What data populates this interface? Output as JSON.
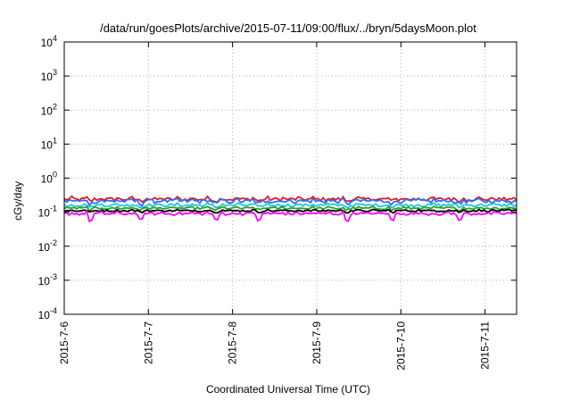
{
  "chart_data": {
    "type": "line",
    "title": "/data/run/goesPlots/archive/2015-07-11/09:00/flux/../bryn/5daysMoon.plot",
    "xlabel": "Coordinated Universal Time (UTC)",
    "ylabel": "cGy/day",
    "x_ticks": [
      "2015-7-6",
      "2015-7-7",
      "2015-7-8",
      "2015-7-9",
      "2015-7-10",
      "2015-7-11"
    ],
    "x_range": [
      "2015-07-06T00:00",
      "2015-07-11T09:00"
    ],
    "y_scale": "log",
    "ylim": [
      0.0001,
      10000
    ],
    "y_ticks": [
      {
        "base": "10",
        "exp": "4"
      },
      {
        "base": "10",
        "exp": "3"
      },
      {
        "base": "10",
        "exp": "2"
      },
      {
        "base": "10",
        "exp": "1"
      },
      {
        "base": "10",
        "exp": "0"
      },
      {
        "base": "10",
        "exp": "-1"
      },
      {
        "base": "10",
        "exp": "-2"
      },
      {
        "base": "10",
        "exp": "-3"
      },
      {
        "base": "10",
        "exp": "-4"
      }
    ],
    "grid": true,
    "series": [
      {
        "color": "#e41a1c",
        "level": 0.24,
        "variation": 0.12,
        "dips": [
          0.3,
          0.9,
          1.8,
          2.3,
          3.35,
          3.9,
          4.7
        ],
        "dip_depth": 0.12
      },
      {
        "color": "#2b6cff",
        "level": 0.21,
        "variation": 0.14,
        "dips": [
          0.3,
          0.9,
          1.8,
          2.3,
          3.35,
          3.9,
          4.7
        ],
        "dip_depth": 0.18
      },
      {
        "color": "#1ec8d8",
        "level": 0.16,
        "variation": 0.1,
        "dips": [
          0.3,
          0.9,
          1.8,
          2.3,
          3.35,
          3.9,
          4.7
        ],
        "dip_depth": 0.15
      },
      {
        "color": "#2ca02c",
        "level": 0.13,
        "variation": 0.08,
        "dips": [
          0.3,
          0.9,
          1.8,
          2.3,
          3.35,
          3.9,
          4.7
        ],
        "dip_depth": 0.12
      },
      {
        "color": "#000000",
        "level": 0.11,
        "variation": 0.06,
        "dips": [
          0.3,
          0.9,
          1.8,
          2.3,
          3.35,
          3.9,
          4.7
        ],
        "dip_depth": 0.1
      },
      {
        "color": "#ff00ff",
        "level": 0.09,
        "variation": 0.1,
        "dips": [
          0.3,
          0.9,
          1.8,
          2.3,
          3.35,
          3.9,
          4.7
        ],
        "dip_depth": 0.45
      }
    ]
  }
}
